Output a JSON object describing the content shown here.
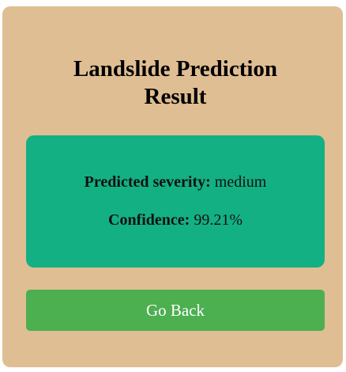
{
  "page": {
    "title_line1": "Landslide Prediction",
    "title_line2": "Result"
  },
  "result": {
    "severity_label": "Predicted severity:",
    "severity_value": "medium",
    "confidence_label": "Confidence:",
    "confidence_value": "99.21%"
  },
  "actions": {
    "back_label": "Go Back"
  },
  "colors": {
    "card_background": "#e0be93",
    "result_background": "#13b084",
    "button_background": "#4caf50"
  }
}
